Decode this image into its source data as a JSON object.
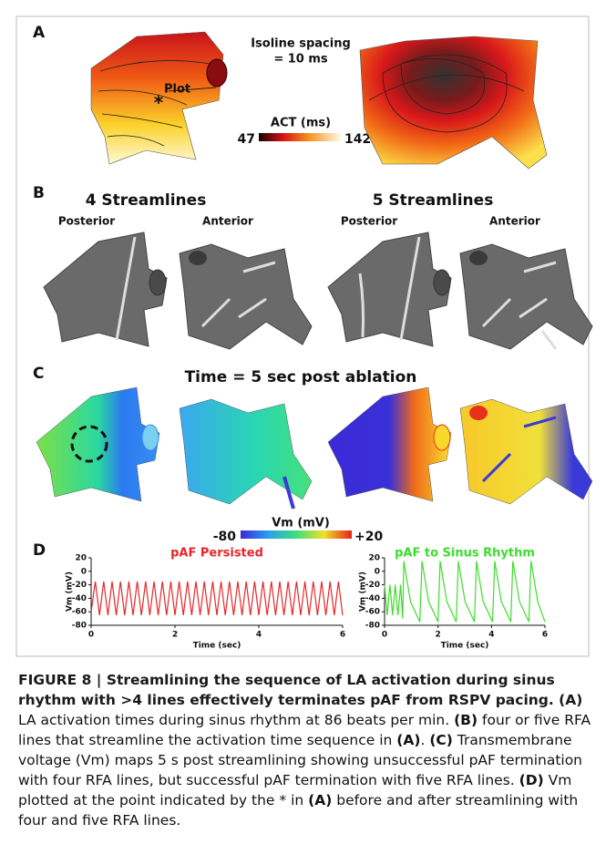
{
  "figure": {
    "A": {
      "label": "A",
      "annotation_plot": "Plot",
      "annotation_star": "*",
      "isoline_line1": "Isoline spacing",
      "isoline_line2": "= 10 ms",
      "colorbar_title": "ACT (ms)",
      "colorbar_min": "47",
      "colorbar_max": "142"
    },
    "B": {
      "label": "B",
      "group1": "4 Streamlines",
      "group2": "5 Streamlines",
      "views": [
        "Posterior",
        "Anterior",
        "Posterior",
        "Anterior"
      ]
    },
    "C": {
      "label": "C",
      "title": "Time = 5 sec post ablation",
      "colorbar_title": "Vm (mV)",
      "colorbar_min": "-80",
      "colorbar_max": "+20"
    },
    "D": {
      "label": "D"
    }
  },
  "chart_data": [
    {
      "type": "line",
      "title": "pAF Persisted",
      "title_color": "#e8262a",
      "color": "#e8262a",
      "xlabel": "Time (sec)",
      "ylabel": "Vm (mV)",
      "x": [
        0,
        0.1,
        0.2,
        0.3,
        0.4,
        0.5,
        0.6,
        0.7,
        0.8,
        0.9,
        1,
        1.1,
        1.2,
        1.3,
        1.4,
        1.5,
        1.6,
        1.7,
        1.8,
        1.9,
        2,
        2.1,
        2.2,
        2.3,
        2.4,
        2.5,
        2.6,
        2.7,
        2.8,
        2.9,
        3,
        3.1,
        3.2,
        3.3,
        3.4,
        3.5,
        3.6,
        3.7,
        3.8,
        3.9,
        4,
        4.1,
        4.2,
        4.3,
        4.4,
        4.5,
        4.6,
        4.7,
        4.8,
        4.9,
        5,
        5.1,
        5.2,
        5.3,
        5.4,
        5.5,
        5.6,
        5.7,
        5.8,
        5.9,
        6
      ],
      "values": [
        -60,
        -15,
        -65,
        -15,
        -65,
        -15,
        -65,
        -15,
        -65,
        -15,
        -65,
        -15,
        -65,
        -15,
        -65,
        -15,
        -65,
        -15,
        -65,
        -15,
        -65,
        -15,
        -65,
        -15,
        -65,
        -15,
        -65,
        -15,
        -65,
        -15,
        -65,
        -15,
        -65,
        -15,
        -65,
        -15,
        -65,
        -15,
        -65,
        -15,
        -65,
        -15,
        -65,
        -15,
        -65,
        -15,
        -65,
        -15,
        -65,
        -15,
        -65,
        -15,
        -65,
        -15,
        -65,
        -15,
        -65,
        -15,
        -65,
        -15,
        -65
      ],
      "xlim": [
        0,
        6
      ],
      "xticks": [
        0,
        2,
        4,
        6
      ],
      "ylim": [
        -80,
        20
      ],
      "yticks": [
        20,
        0,
        -20,
        -40,
        -60,
        -80
      ]
    },
    {
      "type": "line",
      "title": "pAF to Sinus Rhythm",
      "title_color": "#3ddc2a",
      "color": "#3ddc2a",
      "xlabel": "Time (sec)",
      "ylabel": "Vm (mV)",
      "x": [
        0,
        0.1,
        0.2,
        0.3,
        0.4,
        0.5,
        0.6,
        0.68,
        0.72,
        0.97,
        1.32,
        1.4,
        1.65,
        2,
        2.08,
        2.33,
        2.68,
        2.76,
        3.01,
        3.36,
        3.44,
        3.69,
        4.04,
        4.12,
        4.37,
        4.72,
        4.8,
        5.05,
        5.4,
        5.48,
        5.73,
        6
      ],
      "values": [
        -20,
        -65,
        -20,
        -65,
        -20,
        -65,
        -20,
        -70,
        15,
        -45,
        -75,
        15,
        -45,
        -75,
        15,
        -45,
        -75,
        15,
        -45,
        -75,
        15,
        -45,
        -75,
        15,
        -45,
        -75,
        15,
        -45,
        -75,
        15,
        -45,
        -75
      ],
      "xlim": [
        0,
        6
      ],
      "xticks": [
        0,
        2,
        4,
        6
      ],
      "ylim": [
        -80,
        20
      ],
      "yticks": [
        20,
        0,
        -20,
        -40,
        -60,
        -80
      ]
    }
  ],
  "caption": [
    {
      "text": "FIGURE 8 | Streamlining the sequence of LA activation during sinus rhythm with >4 lines effectively terminates pAF from RSPV pacing. (A)",
      "bold": true
    },
    {
      "text": " LA activation times during sinus rhythm at 86 beats per min. ",
      "bold": false
    },
    {
      "text": "(B)",
      "bold": true
    },
    {
      "text": " four or five RFA lines that streamline the activation time sequence in ",
      "bold": false
    },
    {
      "text": "(A)",
      "bold": true
    },
    {
      "text": ". ",
      "bold": false
    },
    {
      "text": "(C)",
      "bold": true
    },
    {
      "text": " Transmembrane voltage (Vm) maps 5 s post streamlining showing unsuccessful pAF termination with four RFA lines, but successful pAF termination with five RFA lines. ",
      "bold": false
    },
    {
      "text": "(D)",
      "bold": true
    },
    {
      "text": " Vm plotted at the point indicated by the * in ",
      "bold": false
    },
    {
      "text": "(A)",
      "bold": true
    },
    {
      "text": " before and after streamlining with four and five RFA lines.",
      "bold": false
    }
  ]
}
